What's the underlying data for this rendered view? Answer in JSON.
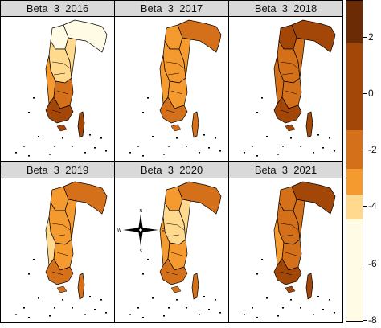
{
  "panels": [
    {
      "title": "Beta  3  2016"
    },
    {
      "title": "Beta  3  2017"
    },
    {
      "title": "Beta  3  2018"
    },
    {
      "title": "Beta  3  2019"
    },
    {
      "title": "Beta  3  2020"
    },
    {
      "title": "Beta  3  2021"
    }
  ],
  "legend": {
    "ticks": [
      "2",
      "0",
      "-2",
      "-4",
      "-6",
      "-8"
    ],
    "colors": [
      "#fffbe4",
      "#fed98e",
      "#f59a2e",
      "#d5701a",
      "#a34708",
      "#6a2b05"
    ]
  },
  "compass": {
    "n": "N",
    "s": "S",
    "e": "E",
    "w": "W"
  },
  "palette": {
    "pale": "#fffbe4",
    "light": "#fed98e",
    "orange": "#f59a2e",
    "dark_orange": "#d5701a",
    "brown": "#a34708"
  }
}
